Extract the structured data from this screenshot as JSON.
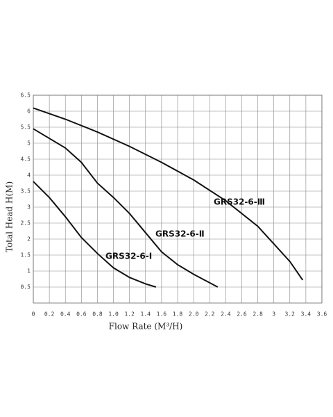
{
  "chart_data": {
    "type": "line",
    "x_label": "Flow Rate (M³/H)",
    "y_label": "Total Head H(M)",
    "xlim": [
      0,
      3.6
    ],
    "ylim": [
      0,
      6.5
    ],
    "xticks": [
      0,
      0.2,
      0.4,
      0.6,
      0.8,
      {
        "value": 1.0,
        "label": "1.0"
      },
      1.2,
      1.4,
      1.6,
      1.8,
      {
        "value": 2.0,
        "label": "2.0"
      },
      2.2,
      2.4,
      2.6,
      2.8,
      3,
      3.2,
      3.4,
      3.6
    ],
    "yticks": [
      0.5,
      1,
      1.5,
      2,
      2.5,
      3,
      3.5,
      4,
      4.5,
      5,
      5.5,
      6,
      6.5
    ],
    "grid": true,
    "series": [
      {
        "name": "GRS32-6-Ⅰ",
        "color": "#111111",
        "x": [
          0,
          0.2,
          0.4,
          0.6,
          0.8,
          1.0,
          1.2,
          1.4,
          1.53
        ],
        "values": [
          3.8,
          3.3,
          2.7,
          2.05,
          1.55,
          1.1,
          0.8,
          0.6,
          0.5
        ]
      },
      {
        "name": "GRS32-6-Ⅱ",
        "color": "#111111",
        "x": [
          0,
          0.4,
          0.6,
          0.8,
          1.0,
          1.2,
          1.4,
          1.6,
          1.8,
          2.0,
          2.3
        ],
        "values": [
          5.45,
          4.85,
          4.4,
          3.75,
          3.3,
          2.8,
          2.2,
          1.6,
          1.2,
          0.9,
          0.5
        ]
      },
      {
        "name": "GRS32-6-Ⅲ",
        "color": "#111111",
        "x": [
          0,
          0.4,
          0.8,
          1.2,
          1.6,
          2.0,
          2.4,
          2.8,
          3.2,
          3.36
        ],
        "values": [
          6.1,
          5.75,
          5.35,
          4.9,
          4.4,
          3.85,
          3.2,
          2.4,
          1.3,
          0.72
        ]
      }
    ]
  }
}
